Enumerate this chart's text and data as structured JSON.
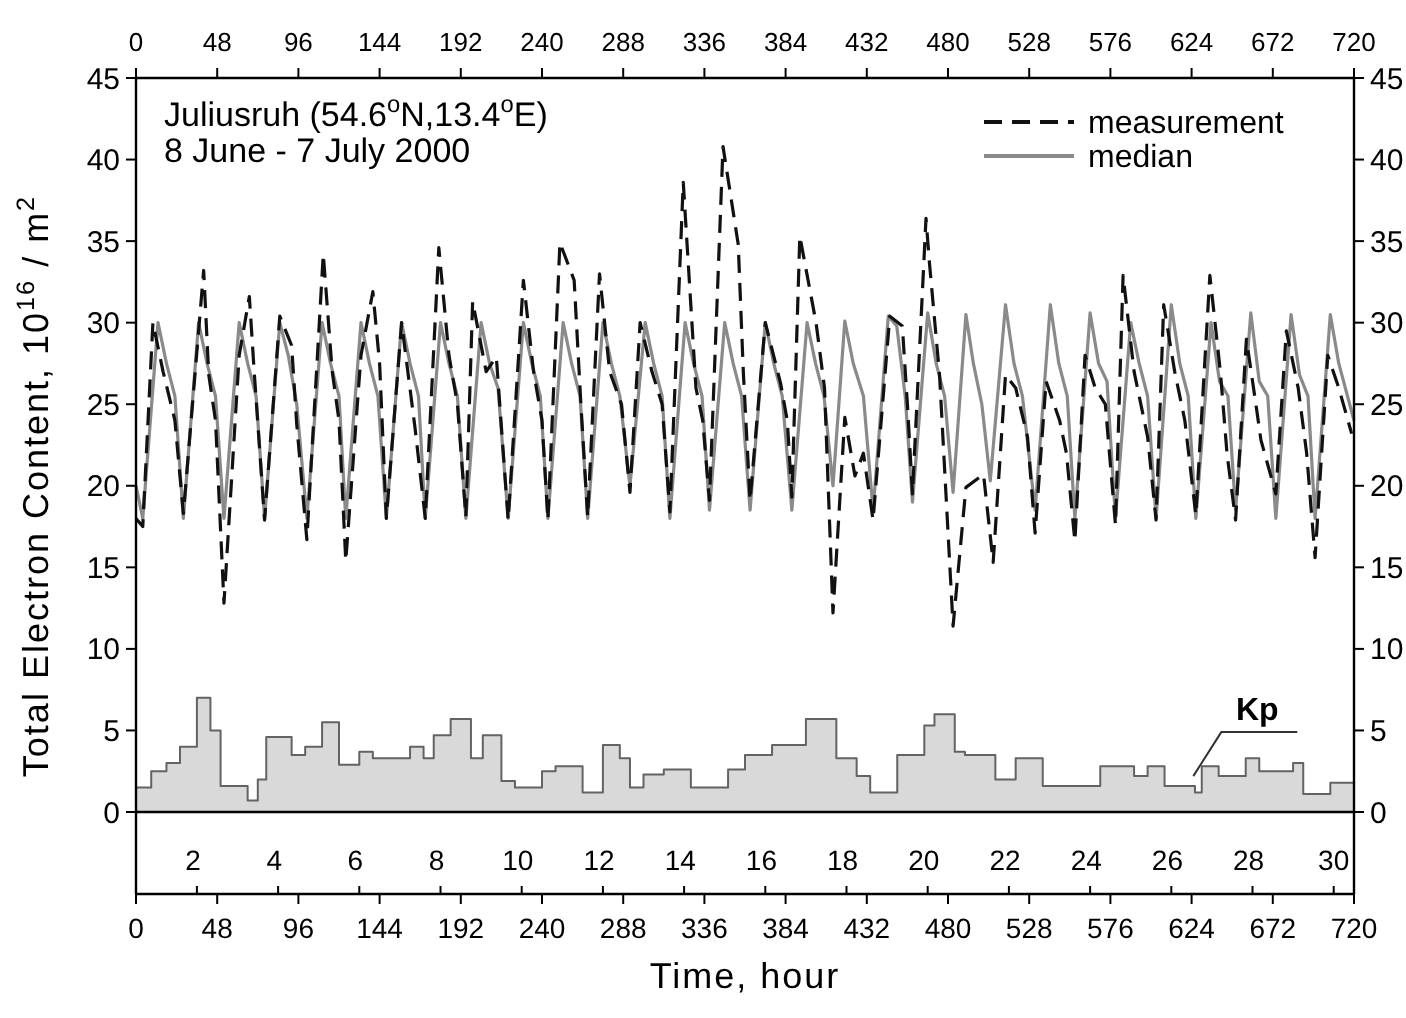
{
  "chart_data": {
    "type": "line",
    "title": "Juliusruh (54.6$^{o}$N,13.4$^{o}$E)",
    "subtitle": "8 June - 7 July 2000",
    "xlabel": "Time, hour",
    "ylabel": "Total Electron Content, 10$^{16}$ / m$^{2}$",
    "xlim": [
      0,
      720
    ],
    "xticks": [
      0,
      48,
      96,
      144,
      192,
      240,
      288,
      336,
      384,
      432,
      480,
      528,
      576,
      624,
      672,
      720
    ],
    "x2lim": [
      0,
      720
    ],
    "x2ticks": [
      0,
      48,
      96,
      144,
      192,
      240,
      288,
      336,
      384,
      432,
      480,
      528,
      576,
      624,
      672,
      720
    ],
    "ylim": [
      0,
      45
    ],
    "yticks": [
      0,
      5,
      10,
      15,
      20,
      25,
      30,
      35,
      40,
      45
    ],
    "y2lim": [
      0,
      45
    ],
    "y2ticks": [
      0,
      5,
      10,
      15,
      20,
      25,
      30,
      35,
      40,
      45
    ],
    "legend": "top right",
    "annotations": [
      {
        "text": "Kp",
        "x": 625,
        "y": 2.2
      },
      "2 4 6 8 10 12 14 16 18 20 22 24 26 28 30"
    ],
    "series": [
      {
        "type": "area",
        "color": "#d9d9d9",
        "x": [
          0,
          9,
          18,
          26,
          36,
          44,
          50,
          66,
          72,
          77,
          92,
          100,
          110,
          120,
          132,
          140,
          162,
          170,
          176,
          186,
          198,
          205,
          216,
          224,
          240,
          248,
          264,
          276,
          286,
          292,
          300,
          312,
          328,
          350,
          360,
          376,
          396,
          414,
          426,
          434,
          450,
          466,
          472,
          484,
          490,
          508,
          520,
          536,
          570,
          590,
          598,
          608,
          626,
          630,
          640,
          656,
          664,
          684,
          690,
          706,
          720
        ],
        "values": [
          1.5,
          2.5,
          3,
          4,
          7,
          5,
          1.6,
          0.7,
          2,
          4.6,
          3.5,
          4,
          5.5,
          2.9,
          3.7,
          3.3,
          4,
          3.3,
          4.7,
          5.7,
          3.3,
          4.7,
          1.9,
          1.5,
          2.5,
          2.8,
          1.2,
          4.1,
          3.3,
          1.5,
          2.3,
          2.6,
          1.5,
          2.6,
          3.5,
          4.1,
          5.7,
          3.3,
          2.2,
          1.2,
          3.5,
          5.3,
          6,
          3.7,
          3.5,
          2,
          3.3,
          1.6,
          2.8,
          2.2,
          2.8,
          1.6,
          1.2,
          2.8,
          2.2,
          3.3,
          2.5,
          3,
          1.1,
          1.8,
          1.8
        ]
      },
      {
        "name": "median",
        "color": "#8a8a8a",
        "line_style": "solid",
        "x": [
          0,
          4,
          13,
          18,
          23,
          28,
          37,
          42,
          47,
          52,
          61,
          66,
          71,
          76,
          85,
          90,
          95,
          101,
          110,
          115,
          120,
          124,
          133,
          138,
          143,
          148,
          157,
          162,
          167,
          171,
          180,
          185,
          190,
          195,
          204,
          209,
          214,
          220,
          229,
          234,
          239,
          243.5,
          252.5,
          257.5,
          262.5,
          267,
          276,
          281,
          286,
          292,
          301,
          306,
          311,
          315.6,
          324.6,
          329.6,
          334.6,
          339,
          348,
          353,
          358,
          363,
          372,
          377,
          382,
          387.7,
          396.7,
          401.7,
          406.7,
          412,
          419,
          424,
          430,
          435.7,
          444.7,
          449.7,
          454.7,
          459,
          468,
          473,
          478,
          483,
          490.6,
          495,
          500,
          505,
          514,
          519,
          524,
          531.5,
          540.5,
          545.5,
          550.5,
          555,
          564,
          569,
          574,
          579,
          588,
          593,
          598,
          603,
          612,
          617,
          622,
          626.5,
          635.5,
          640.5,
          645.5,
          650,
          659,
          664,
          669,
          673.8,
          682.8,
          687.8,
          692.8,
          697,
          706,
          711,
          720
        ],
        "values": [
          20,
          18,
          30,
          27.5,
          25.5,
          18,
          30,
          27.5,
          25.5,
          18,
          30,
          27.5,
          25.5,
          18,
          30,
          28,
          25,
          18,
          30,
          27.5,
          25.5,
          18,
          30,
          27.5,
          25.5,
          18,
          30,
          27.5,
          25.5,
          18,
          30,
          27.5,
          25.5,
          18,
          30,
          27.5,
          26,
          18,
          30,
          27.5,
          25.5,
          18,
          30,
          27.5,
          25.5,
          18,
          30,
          27.5,
          25.5,
          20,
          30,
          27.5,
          25.5,
          18,
          30,
          27.5,
          25.5,
          18.5,
          30,
          27.5,
          25.5,
          18.5,
          30,
          27.5,
          25.5,
          18.5,
          30,
          27.5,
          25.5,
          20,
          30.1,
          27.5,
          25.5,
          18.5,
          30.4,
          29.8,
          25.5,
          19,
          30.6,
          27.5,
          25.5,
          19.6,
          30.5,
          27.5,
          25,
          20.3,
          31.1,
          27.5,
          25.5,
          18.5,
          31.1,
          27.5,
          25.5,
          18,
          30.6,
          27.5,
          26.4,
          18,
          30,
          27.5,
          25.5,
          18,
          31.1,
          27.5,
          25.5,
          18,
          30,
          26.4,
          25.5,
          18.5,
          30.6,
          26.4,
          25.5,
          18,
          30.5,
          26.8,
          25.5,
          18,
          30.5,
          27.5,
          24
        ]
      },
      {
        "name": "measurement",
        "color": "#111111",
        "line_style": "dashed",
        "x": [
          0,
          4,
          10,
          16,
          23,
          28,
          40,
          43,
          47,
          52,
          61,
          67,
          70,
          76,
          85,
          92,
          95,
          101,
          110.7,
          116,
          120,
          124,
          133,
          140,
          144,
          148,
          157,
          165,
          171,
          179,
          185,
          190,
          195,
          199,
          207,
          213,
          220,
          229,
          235,
          240,
          243.5,
          250.6,
          259,
          263,
          267,
          274,
          280,
          287,
          292,
          298,
          305,
          311,
          315.6,
          323.5,
          331,
          335,
          339,
          347,
          356,
          359,
          363,
          372,
          381,
          385,
          387.7,
          392.4,
          402,
          407,
          412,
          419,
          425,
          430,
          435.7,
          445.6,
          453,
          456,
          459,
          467,
          469,
          475,
          483,
          490.6,
          501,
          506.7,
          514,
          520,
          527,
          531.5,
          538,
          546,
          550,
          555,
          561,
          567,
          573,
          579,
          583.5,
          590,
          598,
          603,
          607.5,
          614,
          620,
          626.5,
          634.8,
          641,
          645,
          650,
          656.4,
          662,
          665,
          673.8,
          680,
          687,
          692,
          697,
          704.5,
          711,
          718.6
        ],
        "values": [
          18,
          17.5,
          30,
          27,
          24,
          18.3,
          33.2,
          26.8,
          24,
          12.8,
          28,
          31.6,
          26.8,
          17.9,
          30.4,
          28.6,
          23.8,
          16.7,
          34.2,
          27,
          24,
          15.4,
          28,
          31.9,
          27.5,
          18,
          30,
          23.5,
          18,
          34.6,
          28,
          25,
          18.1,
          31.3,
          27,
          27.9,
          17.9,
          32.6,
          27,
          24,
          17.9,
          34.9,
          32.6,
          25,
          18.1,
          33,
          27,
          25,
          19.6,
          30,
          27,
          25,
          18.4,
          38.6,
          26,
          24,
          19.1,
          40.8,
          34.8,
          27,
          19.1,
          30,
          26.3,
          24,
          19.3,
          35.3,
          30,
          26,
          12.2,
          24.2,
          20.6,
          22,
          17.9,
          30.4,
          29.8,
          25,
          19.5,
          36.4,
          33.7,
          26.8,
          11.4,
          19.9,
          20.7,
          15.3,
          26.8,
          26,
          23,
          17.1,
          26.4,
          24,
          22,
          16.6,
          28,
          26,
          25,
          17.6,
          32.9,
          27,
          23,
          17.9,
          31.1,
          27,
          24,
          18.2,
          32.9,
          27,
          21.9,
          17.9,
          29,
          25,
          22.8,
          19.5,
          29.5,
          26,
          22,
          15.6,
          28,
          26,
          23.2
        ]
      }
    ]
  }
}
